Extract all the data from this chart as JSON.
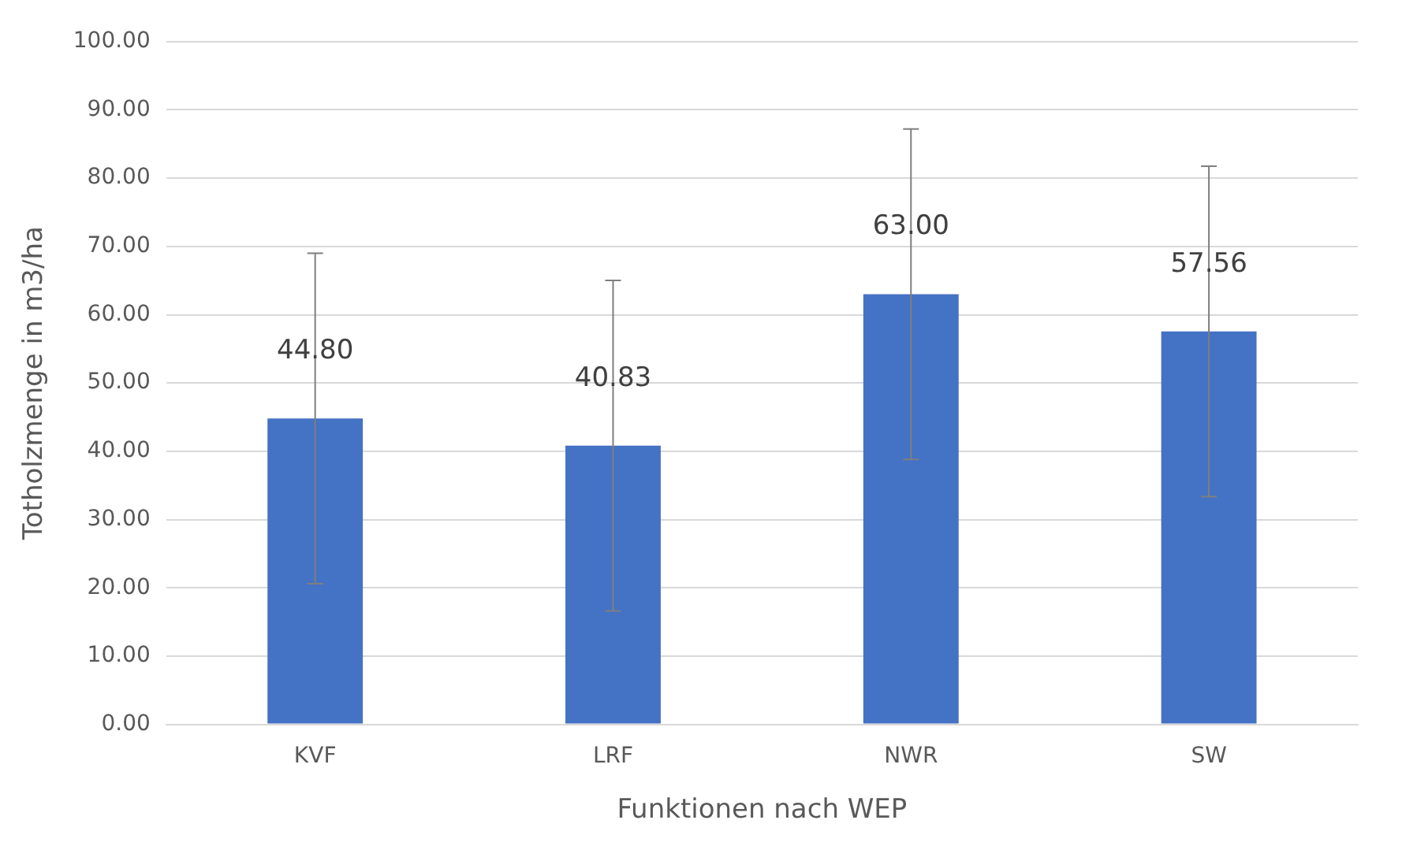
{
  "chart_data": {
    "type": "bar",
    "xlabel": "Funktionen nach WEP",
    "ylabel": "Totholzmenge in m3/ha",
    "categories": [
      "KVF",
      "LRF",
      "NWR",
      "SW"
    ],
    "values": [
      44.8,
      40.83,
      63.0,
      57.56
    ],
    "value_labels": [
      "44.80",
      "40.83",
      "63.00",
      "57.56"
    ],
    "errors": [
      24.2,
      24.2,
      24.2,
      24.2
    ],
    "color": "#4472c4",
    "ylim": [
      0,
      100
    ],
    "yticks": [
      {
        "value": 0,
        "label": "0.00"
      },
      {
        "value": 10,
        "label": "10.00"
      },
      {
        "value": 20,
        "label": "20.00"
      },
      {
        "value": 30,
        "label": "30.00"
      },
      {
        "value": 40,
        "label": "40.00"
      },
      {
        "value": 50,
        "label": "50.00"
      },
      {
        "value": 60,
        "label": "60.00"
      },
      {
        "value": 70,
        "label": "70.00"
      },
      {
        "value": 80,
        "label": "80.00"
      },
      {
        "value": 90,
        "label": "90.00"
      },
      {
        "value": 100,
        "label": "100.00"
      }
    ],
    "grid": "y"
  }
}
